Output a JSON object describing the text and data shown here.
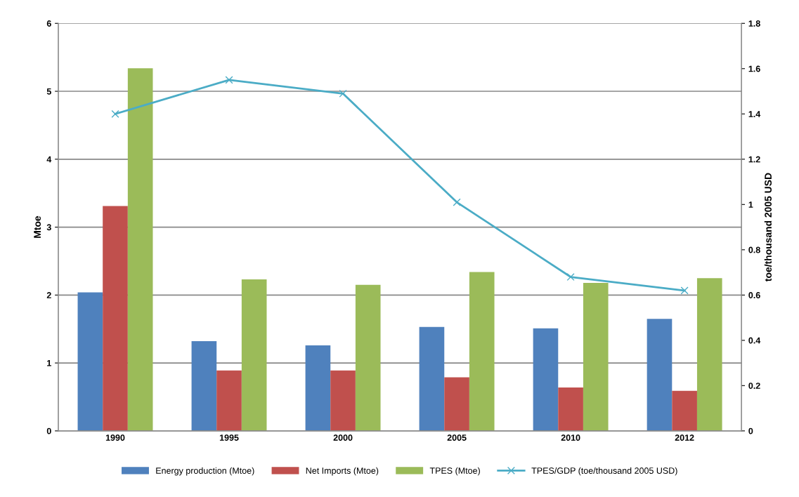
{
  "chart_data": {
    "type": "bar",
    "ylabel": "Mtoe",
    "y2label": "toe/thousand 2005 USD",
    "categories": [
      "1990",
      "1995",
      "2000",
      "2005",
      "2010",
      "2012"
    ],
    "series": [
      {
        "name": "Energy production (Mtoe)",
        "color": "#4f81bd",
        "values": [
          2.04,
          1.32,
          1.26,
          1.53,
          1.51,
          1.65
        ]
      },
      {
        "name": "Net Imports (Mtoe)",
        "color": "#c0504d",
        "values": [
          3.31,
          0.89,
          0.89,
          0.79,
          0.64,
          0.59
        ]
      },
      {
        "name": "TPES (Mtoe)",
        "color": "#9bbb59",
        "values": [
          5.34,
          2.23,
          2.15,
          2.34,
          2.18,
          2.25
        ]
      },
      {
        "name": "TPES/GDP (toe/thousand 2005 USD)",
        "type": "line",
        "axis": "y2",
        "color": "#4bacc6",
        "marker": "cross",
        "values": [
          1.4,
          1.55,
          1.49,
          1.01,
          0.68,
          0.62
        ]
      }
    ],
    "ylim": [
      0,
      6
    ],
    "yticks": [
      0,
      1,
      2,
      3,
      4,
      5,
      6
    ],
    "y2lim": [
      0,
      1.8
    ],
    "y2ticks": [
      0,
      0.2,
      0.4,
      0.6,
      0.8,
      1,
      1.2,
      1.4,
      1.6,
      1.8
    ],
    "grid": "y",
    "legend": "bottom"
  }
}
